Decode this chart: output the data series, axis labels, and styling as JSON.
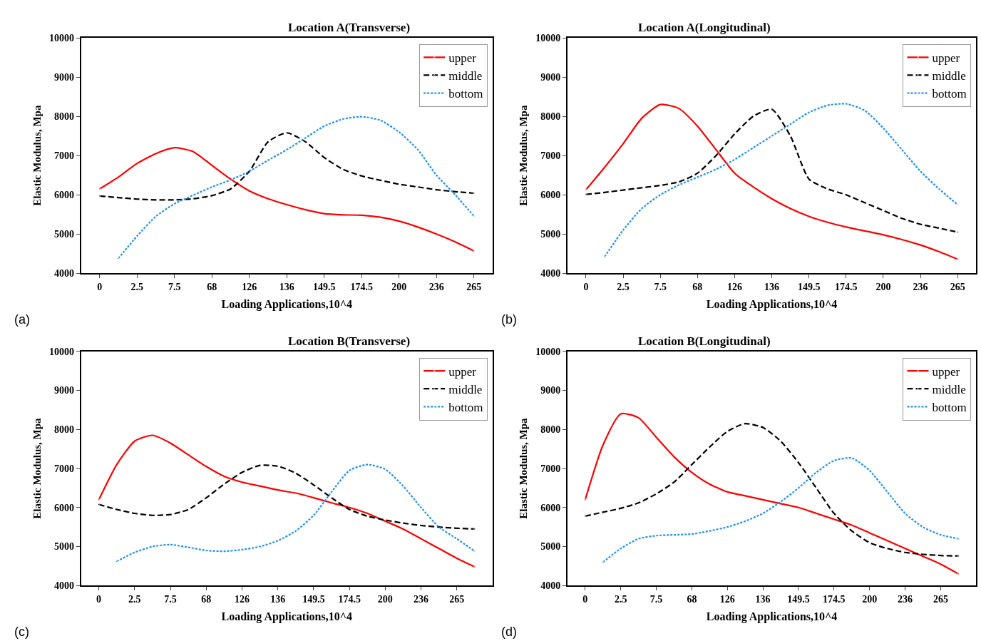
{
  "chart_data": [
    {
      "type": "line",
      "title": "Location A(Transverse)",
      "xlabel": "Loading Applications,10^4",
      "ylabel": "Elastic Modulus, Mpa",
      "annotations": [
        "(a)"
      ],
      "legend": "top right",
      "categories": [
        "0",
        null,
        "2.5",
        null,
        "7.5",
        null,
        "68",
        null,
        "126",
        null,
        "136",
        null,
        "149.5",
        null,
        "174.5",
        null,
        "200",
        null,
        "236",
        null,
        "265"
      ],
      "ylim": [
        4000,
        10000
      ],
      "yticks": [
        4000,
        5000,
        6000,
        7000,
        8000,
        9000,
        10000
      ],
      "series": [
        {
          "name": "upper",
          "color": "#ff0000",
          "line_style": "solid",
          "values": [
            6150,
            6450,
            6800,
            7050,
            7200,
            7100,
            6750,
            6400,
            6100,
            5900,
            5750,
            5620,
            5520,
            5490,
            5480,
            5430,
            5330,
            5180,
            5000,
            4800,
            4570
          ]
        },
        {
          "name": "middle",
          "color": "#000000",
          "line_style": "dashed",
          "values": [
            5970,
            5930,
            5890,
            5870,
            5870,
            5900,
            5980,
            6150,
            6600,
            7350,
            7580,
            7350,
            6950,
            6650,
            6480,
            6370,
            6270,
            6200,
            6130,
            6080,
            6040
          ]
        },
        {
          "name": "bottom",
          "color": "#1e90ff",
          "line_style": "dotted",
          "values": [
            null,
            4380,
            4950,
            5450,
            5770,
            5990,
            6200,
            6380,
            6600,
            6880,
            7150,
            7450,
            7750,
            7930,
            7990,
            7900,
            7600,
            7150,
            6500,
            6000,
            5460
          ]
        }
      ]
    },
    {
      "type": "line",
      "title": "Location A(Longitudinal)",
      "xlabel": "Loading Applications,10^4",
      "ylabel": "Elastic Modulus, Mpa",
      "annotations": [
        "(b)"
      ],
      "legend": "top right",
      "categories": [
        "0",
        null,
        "2.5",
        null,
        "7.5",
        null,
        "68",
        null,
        "126",
        null,
        "136",
        null,
        "149.5",
        null,
        "174.5",
        null,
        "200",
        null,
        "236",
        null,
        "265"
      ],
      "ylim": [
        4000,
        10000
      ],
      "yticks": [
        4000,
        5000,
        6000,
        7000,
        8000,
        9000,
        10000
      ],
      "series": [
        {
          "name": "upper",
          "color": "#ff0000",
          "line_style": "solid",
          "values": [
            6130,
            6700,
            7300,
            7950,
            8300,
            8200,
            7750,
            7150,
            6550,
            6200,
            5900,
            5650,
            5450,
            5300,
            5180,
            5080,
            4980,
            4860,
            4720,
            4550,
            4360
          ]
        },
        {
          "name": "middle",
          "color": "#000000",
          "line_style": "dashed",
          "values": [
            6010,
            6060,
            6120,
            6180,
            6240,
            6330,
            6550,
            7000,
            7550,
            8000,
            8180,
            7500,
            6400,
            6150,
            6000,
            5800,
            5600,
            5400,
            5250,
            5150,
            5050
          ]
        },
        {
          "name": "bottom",
          "color": "#1e90ff",
          "line_style": "dotted",
          "values": [
            null,
            4420,
            5100,
            5650,
            6000,
            6250,
            6450,
            6650,
            6900,
            7200,
            7500,
            7800,
            8100,
            8280,
            8320,
            8150,
            7700,
            7150,
            6600,
            6150,
            5750
          ]
        }
      ]
    },
    {
      "type": "line",
      "title": "Location B(Transverse)",
      "xlabel": "Loading Applications,10^4",
      "ylabel": "Elastic Modulus, Mpa",
      "annotations": [
        "(c)"
      ],
      "legend": "top right",
      "categories": [
        "0",
        null,
        "2.5",
        null,
        "7.5",
        null,
        "68",
        null,
        "126",
        null,
        "136",
        null,
        "149.5",
        null,
        "174.5",
        null,
        "200",
        null,
        "236",
        null,
        "265",
        null
      ],
      "ylim": [
        4000,
        10000
      ],
      "yticks": [
        4000,
        5000,
        6000,
        7000,
        8000,
        9000,
        10000
      ],
      "series": [
        {
          "name": "upper",
          "color": "#ff0000",
          "line_style": "solid",
          "values": [
            6200,
            7100,
            7700,
            7850,
            7650,
            7350,
            7050,
            6800,
            6650,
            6550,
            6450,
            6370,
            6250,
            6120,
            6000,
            5850,
            5650,
            5450,
            5200,
            4950,
            4700,
            4480
          ]
        },
        {
          "name": "middle",
          "color": "#000000",
          "line_style": "dashed",
          "values": [
            6080,
            5950,
            5850,
            5800,
            5820,
            5950,
            6250,
            6600,
            6900,
            7080,
            7060,
            6880,
            6580,
            6250,
            5950,
            5780,
            5680,
            5600,
            5540,
            5500,
            5470,
            5450
          ]
        },
        {
          "name": "bottom",
          "color": "#1e90ff",
          "line_style": "dotted",
          "values": [
            null,
            4620,
            4850,
            5000,
            5050,
            4980,
            4900,
            4880,
            4920,
            5000,
            5150,
            5400,
            5800,
            6400,
            6950,
            7100,
            6980,
            6550,
            6000,
            5500,
            5200,
            4880
          ]
        }
      ]
    },
    {
      "type": "line",
      "title": "Location B(Longitudinal)",
      "xlabel": "Loading Applications,10^4",
      "ylabel": "Elastic Modulus, Mpa",
      "annotations": [
        "(d)"
      ],
      "legend": "top right",
      "categories": [
        "0",
        null,
        "2.5",
        null,
        "7.5",
        null,
        "68",
        null,
        "126",
        null,
        "136",
        null,
        "149.5",
        null,
        "174.5",
        null,
        "200",
        null,
        "236",
        null,
        "265",
        null
      ],
      "ylim": [
        4000,
        10000
      ],
      "yticks": [
        4000,
        5000,
        6000,
        7000,
        8000,
        9000,
        10000
      ],
      "series": [
        {
          "name": "upper",
          "color": "#ff0000",
          "line_style": "solid",
          "values": [
            6200,
            7600,
            8400,
            8300,
            7800,
            7300,
            6900,
            6600,
            6400,
            6300,
            6200,
            6100,
            6000,
            5850,
            5700,
            5550,
            5350,
            5150,
            4950,
            4750,
            4550,
            4300
          ]
        },
        {
          "name": "middle",
          "color": "#000000",
          "line_style": "dashed",
          "values": [
            5780,
            5880,
            5980,
            6120,
            6350,
            6650,
            7100,
            7550,
            7950,
            8150,
            8050,
            7700,
            7150,
            6500,
            5850,
            5400,
            5100,
            4950,
            4850,
            4800,
            4770,
            4760
          ]
        },
        {
          "name": "bottom",
          "color": "#1e90ff",
          "line_style": "dotted",
          "values": [
            null,
            4600,
            4950,
            5200,
            5280,
            5300,
            5320,
            5400,
            5500,
            5650,
            5850,
            6150,
            6500,
            6900,
            7200,
            7270,
            6950,
            6400,
            5850,
            5500,
            5300,
            5200
          ]
        }
      ]
    }
  ]
}
